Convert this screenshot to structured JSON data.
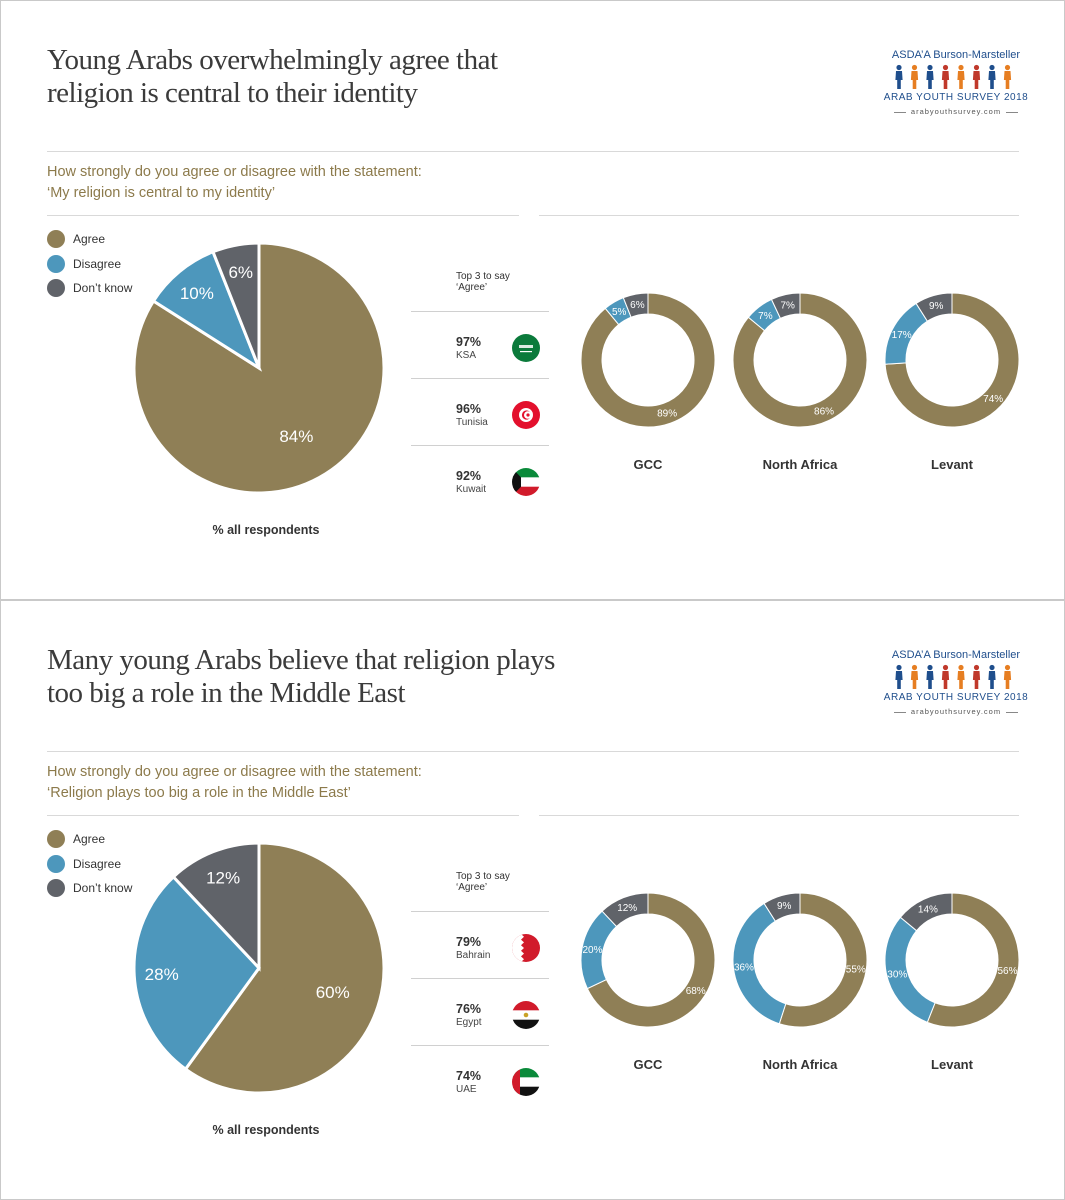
{
  "colors": {
    "agree": "#8f7f56",
    "disagree": "#4d97bc",
    "dont_know": "#606369",
    "title": "#3b3b3b",
    "question": "#8c7a4b",
    "brand": "#1f4e8c"
  },
  "brand": {
    "name": "ASDA’A Burson-Marsteller",
    "survey": "ARAB YOUTH SURVEY 2018",
    "url": "arabyouthsurvey.com",
    "figure_colors": [
      "#1f4e8c",
      "#e67e22",
      "#1f4e8c",
      "#c0392b",
      "#e67e22",
      "#c0392b",
      "#1f4e8c",
      "#e67e22"
    ]
  },
  "panels": [
    {
      "title_line1": "Young Arabs overwhelmingly agree that",
      "title_line2": "religion is central to their identity",
      "question_line1": "How strongly do you agree or disagree with the statement:",
      "question_line2": "‘My religion is central to my identity’",
      "legend": {
        "agree": "Agree",
        "disagree": "Disagree",
        "dont_know": "Don’t know"
      },
      "caption": "% all respondents",
      "top3_title_line1": "Top 3 to say",
      "top3_title_line2": "‘Agree’",
      "top3": [
        {
          "pct": "97%",
          "country": "KSA",
          "flag": "saudi-arabia-flag-icon"
        },
        {
          "pct": "96%",
          "country": "Tunisia",
          "flag": "tunisia-flag-icon"
        },
        {
          "pct": "92%",
          "country": "Kuwait",
          "flag": "kuwait-flag-icon"
        }
      ]
    },
    {
      "title_line1": "Many young Arabs believe that religion plays",
      "title_line2": "too big a role in the Middle East",
      "question_line1": "How strongly do you agree or disagree with the statement:",
      "question_line2": "‘Religion plays too big a role in the Middle East’",
      "legend": {
        "agree": "Agree",
        "disagree": "Disagree",
        "dont_know": "Don’t know"
      },
      "caption": "% all respondents",
      "top3_title_line1": "Top 3 to say",
      "top3_title_line2": "‘Agree’",
      "top3": [
        {
          "pct": "79%",
          "country": "Bahrain",
          "flag": "bahrain-flag-icon"
        },
        {
          "pct": "76%",
          "country": "Egypt",
          "flag": "egypt-flag-icon"
        },
        {
          "pct": "74%",
          "country": "UAE",
          "flag": "uae-flag-icon"
        }
      ]
    }
  ],
  "chart_data": [
    {
      "type": "pie",
      "categories": [
        "Agree",
        "Disagree",
        "Don’t know"
      ],
      "values": [
        84,
        10,
        6
      ],
      "labels": [
        "84%",
        "10%",
        "6%"
      ]
    },
    {
      "type": "pie",
      "title": "GCC",
      "categories": [
        "Agree",
        "Disagree",
        "Don’t know"
      ],
      "values": [
        89,
        5,
        6
      ],
      "labels": [
        "89%",
        "5%",
        "6%"
      ]
    },
    {
      "type": "pie",
      "title": "North Africa",
      "categories": [
        "Agree",
        "Disagree",
        "Don’t know"
      ],
      "values": [
        86,
        7,
        7
      ],
      "labels": [
        "86%",
        "7%",
        "7%"
      ]
    },
    {
      "type": "pie",
      "title": "Levant",
      "categories": [
        "Agree",
        "Disagree",
        "Don’t know"
      ],
      "values": [
        74,
        17,
        9
      ],
      "labels": [
        "74%",
        "17%",
        "9%"
      ]
    },
    {
      "type": "pie",
      "categories": [
        "Agree",
        "Disagree",
        "Don’t know"
      ],
      "values": [
        60,
        28,
        12
      ],
      "labels": [
        "60%",
        "28%",
        "12%"
      ]
    },
    {
      "type": "pie",
      "title": "GCC",
      "categories": [
        "Agree",
        "Disagree",
        "Don’t know"
      ],
      "values": [
        68,
        20,
        12
      ],
      "labels": [
        "68%",
        "20%",
        "12%"
      ]
    },
    {
      "type": "pie",
      "title": "North Africa",
      "categories": [
        "Agree",
        "Disagree",
        "Don’t know"
      ],
      "values": [
        55,
        36,
        9
      ],
      "labels": [
        "55%",
        "36%",
        "9%"
      ]
    },
    {
      "type": "pie",
      "title": "Levant",
      "categories": [
        "Agree",
        "Disagree",
        "Don’t know"
      ],
      "values": [
        56,
        30,
        14
      ],
      "labels": [
        "56%",
        "30%",
        "14%"
      ]
    }
  ]
}
